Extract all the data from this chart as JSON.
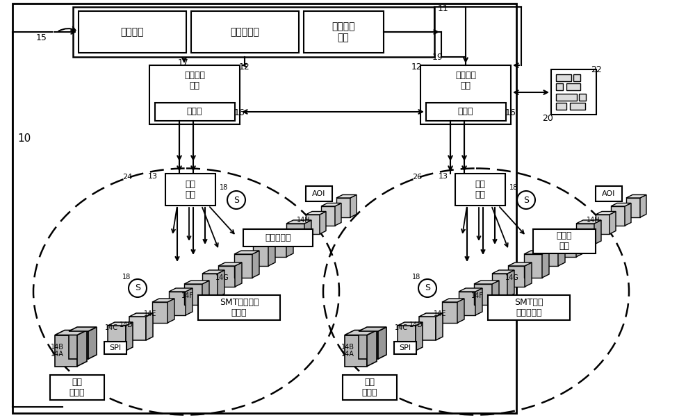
{
  "bg_color": "#ffffff",
  "fig_width": 10.0,
  "fig_height": 6.02,
  "labels": {
    "enterprise": "企业系统",
    "server": "服务器设备",
    "factory_mgmt": "工厂管理\n系统",
    "ics1_top": "工业控制\n系统",
    "ics1_ctrl": "控制器",
    "ics2_top": "工业控制\n系统",
    "ics2_ctrl": "控制器",
    "safety1": "安全\n设备",
    "safety2": "安全\n设备",
    "solder1": "锡膏\n印刷机",
    "solder2": "锡膏\n印刷机",
    "smt1": "SMT部件拾取\n和放置",
    "smt2": "SMT部件\n拾取和放置",
    "reflow1": "对流回流炉",
    "reflow2": "对流回\n流炉",
    "spi": "SPI",
    "aoi": "AOI"
  },
  "n10": "10",
  "n11": "11",
  "n12": "12",
  "n13": "13",
  "n14A": "14A",
  "n14B": "14B",
  "n14C": "14C",
  "n14D": "14D",
  "n14E": "14E",
  "n14F": "14F",
  "n14G": "14G",
  "n14H": "14H",
  "n15": "15",
  "n16": "16",
  "n17": "17",
  "n18": "18",
  "n19": "19",
  "n20": "20",
  "n22": "22",
  "n24": "24",
  "n26": "26",
  "s_label": "S"
}
